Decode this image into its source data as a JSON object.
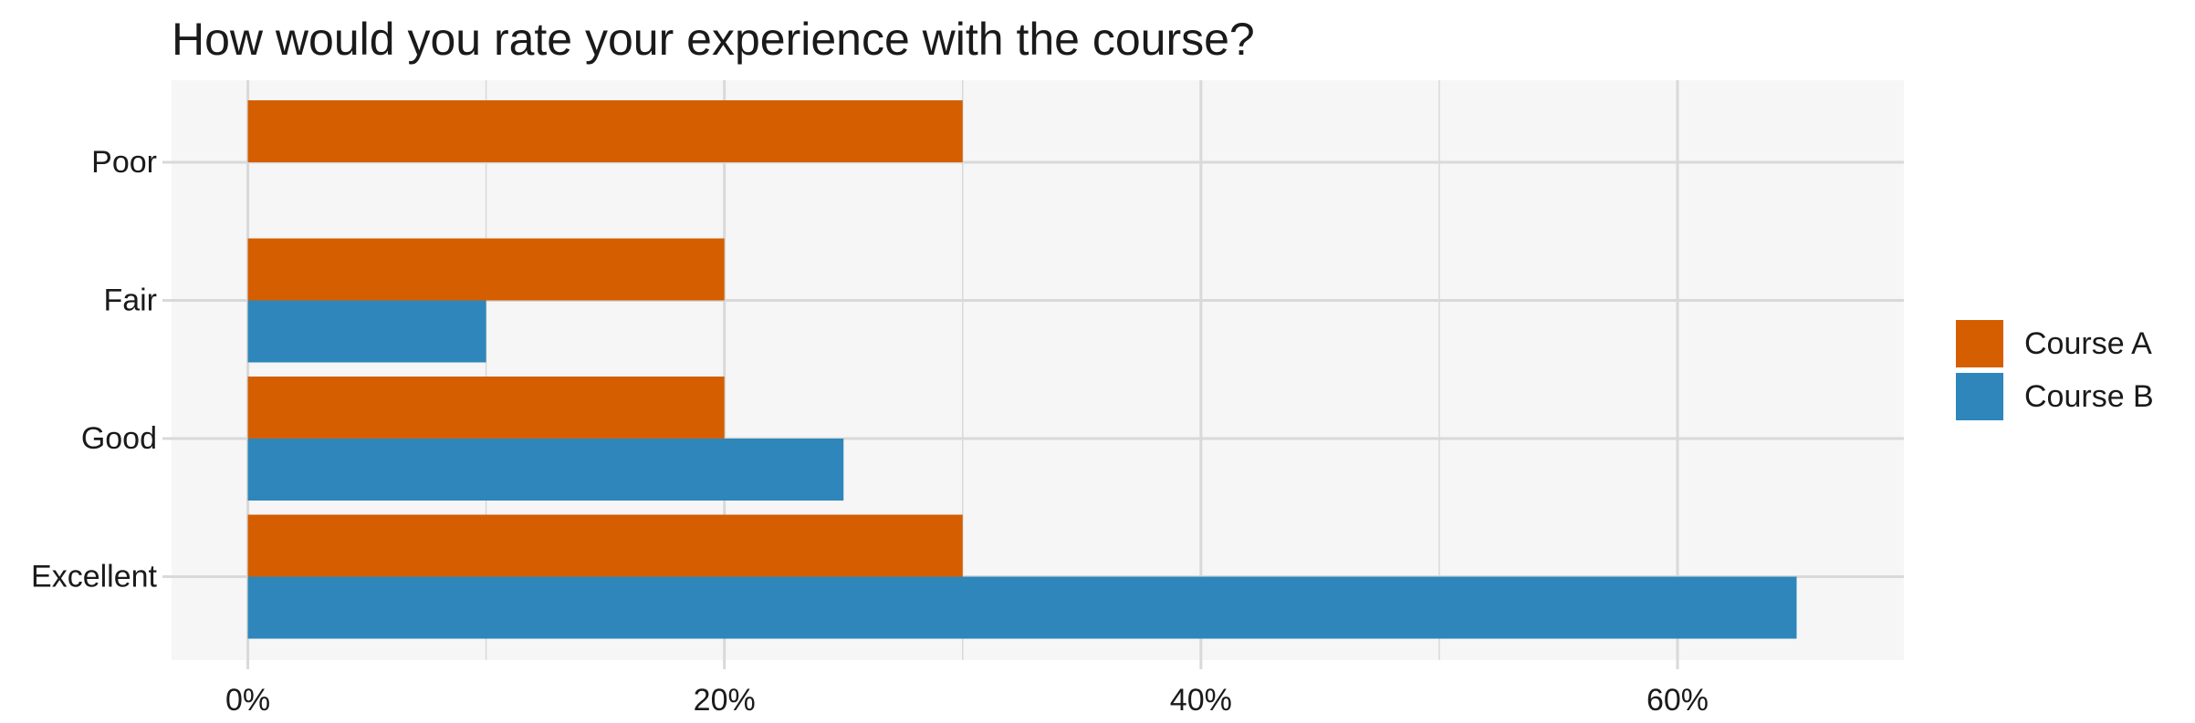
{
  "chart_data": {
    "type": "bar",
    "orientation": "horizontal",
    "title": "How would you rate your experience with the course?",
    "categories": [
      "Poor",
      "Fair",
      "Good",
      "Excellent"
    ],
    "series": [
      {
        "name": "Course A",
        "color": "#d55e00",
        "values": [
          30,
          20,
          20,
          30
        ]
      },
      {
        "name": "Course B",
        "color": "#2e86bb",
        "values": [
          0,
          10,
          25,
          65
        ]
      }
    ],
    "xlim": [
      -3.2,
      69.5
    ],
    "x_ticks": [
      0,
      20,
      40,
      60
    ],
    "x_tick_labels": [
      "0%",
      "20%",
      "40%",
      "60%"
    ],
    "x_minor_ticks": [
      10,
      30,
      50
    ],
    "grid": true,
    "panel_background": "#f6f6f6",
    "grid_color": "#d9d9d9",
    "legend_position": "right"
  }
}
